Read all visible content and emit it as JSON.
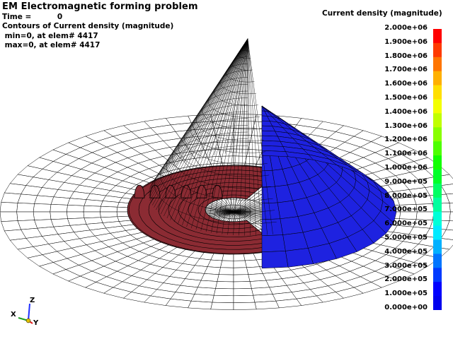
{
  "header": {
    "title": "EM Electromagnetic forming problem",
    "time_line": "Time =          0",
    "contour_line": "Contours of Current density (magnitude)",
    "min_line": " min=0, at elem# 4417",
    "max_line": " max=0, at elem# 4417"
  },
  "legend": {
    "title": "Current density (magnitude)",
    "labels": [
      "2.000e+06",
      "1.900e+06",
      "1.800e+06",
      "1.700e+06",
      "1.600e+06",
      "1.500e+06",
      "1.400e+06",
      "1.300e+06",
      "1.200e+06",
      "1.100e+06",
      "1.000e+06",
      "9.000e+05",
      "8.000e+05",
      "7.000e+05",
      "6.000e+05",
      "5.000e+05",
      "4.000e+05",
      "3.000e+05",
      "2.000e+05",
      "1.000e+05",
      "0.000e+00"
    ],
    "colors": [
      "#ff0000",
      "#ff3a00",
      "#ff7500",
      "#ffb000",
      "#ffdf00",
      "#f3ff00",
      "#c0ff00",
      "#88ff00",
      "#4dff00",
      "#12ff00",
      "#00ff28",
      "#00ff63",
      "#00ff9e",
      "#00ffd8",
      "#00eaff",
      "#00b0ff",
      "#0075ff",
      "#003aff",
      "#0000ff",
      "#0000ee"
    ]
  },
  "triad": {
    "x": "X",
    "y": "Y",
    "z": "Z"
  },
  "colors": {
    "mesh_line": "#000000",
    "plate_fill": "#ffffff",
    "coil_fill": "#8b2b33",
    "workpiece_fill": "#1e22e0",
    "background": "#ffffff"
  }
}
